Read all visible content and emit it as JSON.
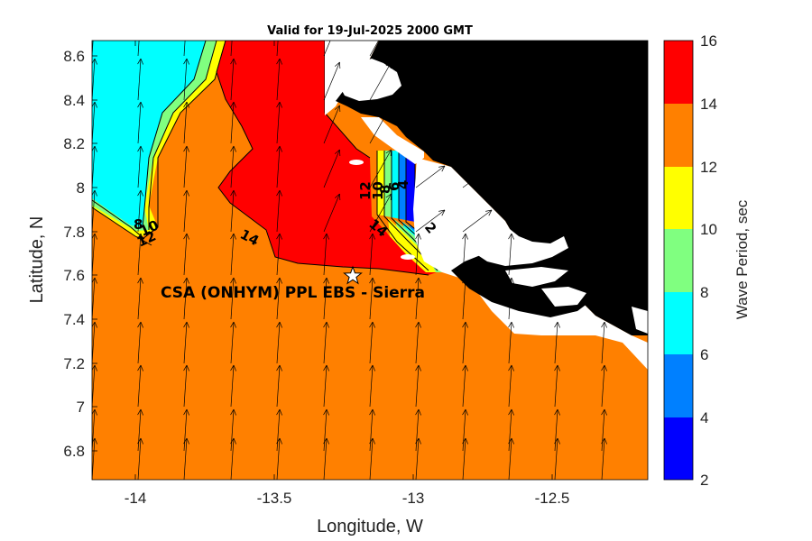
{
  "title": "Valid for 19-Jul-2025 2000 GMT",
  "xlabel": "Longitude, W",
  "ylabel": "Latitude, N",
  "colorbar_label": "Wave Period, sec",
  "xticks": [
    "-14",
    "-13.5",
    "-13",
    "-12.5"
  ],
  "yticks": [
    "8.6",
    "8.4",
    "8.2",
    "8",
    "7.8",
    "7.6",
    "7.4",
    "7.2",
    "7",
    "6.8"
  ],
  "colorbar": {
    "ticks": [
      "16",
      "14",
      "12",
      "10",
      "8",
      "6",
      "4",
      "2"
    ],
    "bands": [
      {
        "range": "14-16",
        "color": "#ff0000"
      },
      {
        "range": "12-14",
        "color": "#ff8000"
      },
      {
        "range": "10-12",
        "color": "#ffff00"
      },
      {
        "range": "8-10",
        "color": "#80ff80"
      },
      {
        "range": "6-8",
        "color": "#00ffff"
      },
      {
        "range": "4-6",
        "color": "#0080ff"
      },
      {
        "range": "2-4",
        "color": "#0000ff"
      }
    ]
  },
  "contour_labels": [
    "8",
    "10",
    "12",
    "14",
    "14",
    "12",
    "10",
    "8",
    "6",
    "4",
    "2"
  ],
  "site": {
    "label": "CSA (ONHYM) PPL EBS - Sierra",
    "marker": "star-icon"
  },
  "map": {
    "xlim": [
      -14.2,
      -12.2
    ],
    "ylim": [
      6.65,
      8.67
    ],
    "land_color": "#000000",
    "grid": false
  }
}
